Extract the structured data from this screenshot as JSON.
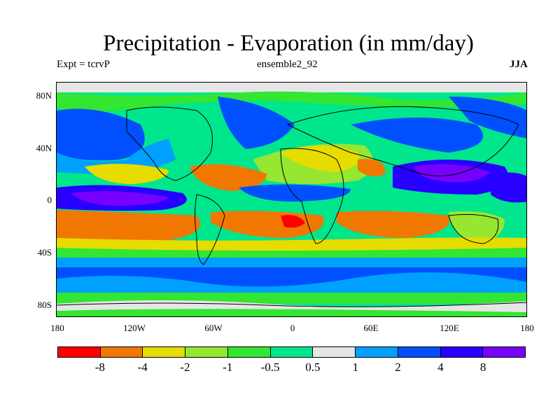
{
  "title": "Precipitation - Evaporation (in mm/day)",
  "subtitle_left": "Expt = tcrvP",
  "subtitle_center": "ensemble2_92",
  "subtitle_right": "JJA",
  "lat_labels": [
    "80N",
    "40N",
    "0",
    "40S",
    "80S"
  ],
  "lon_labels": [
    "180",
    "120W",
    "60W",
    "0",
    "60E",
    "120E",
    "180"
  ],
  "colorbar": {
    "colors": [
      "#ff0000",
      "#f07800",
      "#e6dc00",
      "#96e632",
      "#32e632",
      "#00e68c",
      "#e6e6e6",
      "#00a0ff",
      "#0050ff",
      "#2800ff",
      "#7800ff"
    ],
    "labels": [
      "-8",
      "-4",
      "-2",
      "-1",
      "-0.5",
      "0.5",
      "1",
      "2",
      "4",
      "8"
    ]
  }
}
